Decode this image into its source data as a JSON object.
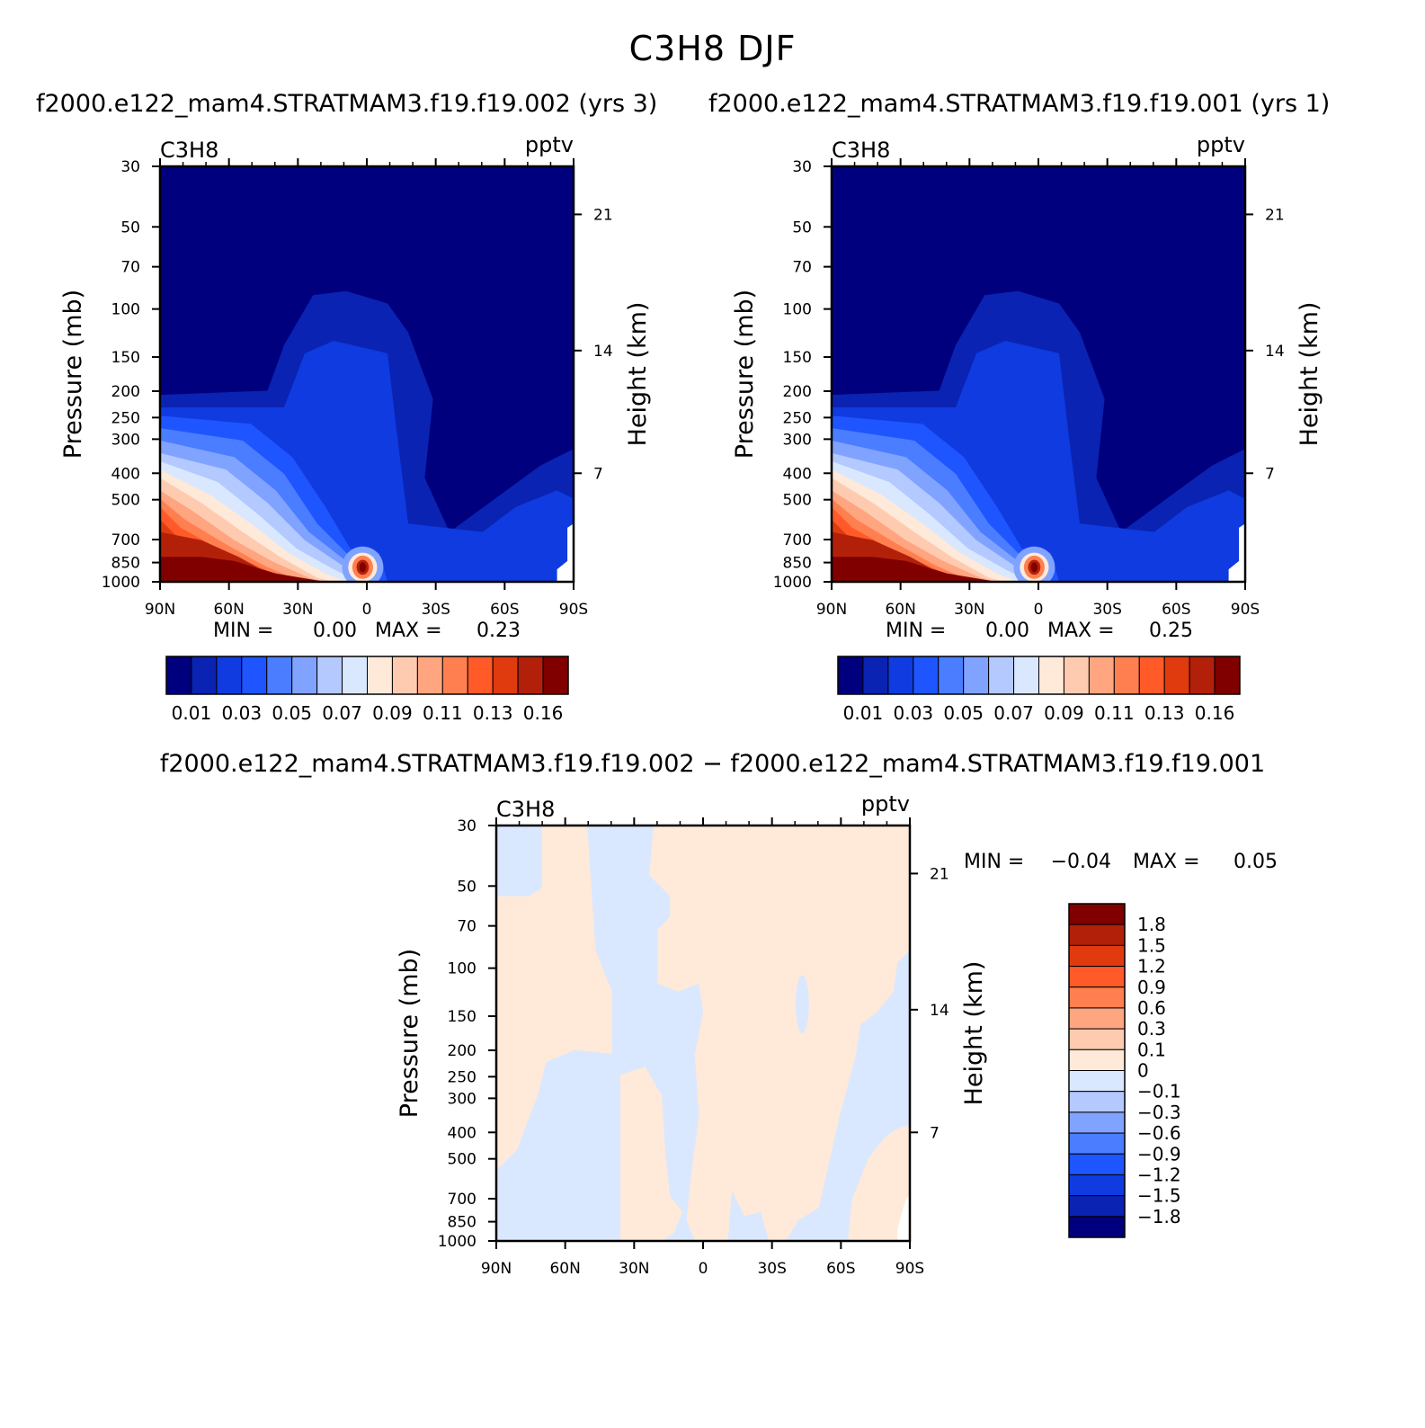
{
  "title": "C3H8 DJF",
  "colors": {
    "seq": [
      "#00007f",
      "#0a23b3",
      "#0f3be0",
      "#1e55ff",
      "#4a7dff",
      "#80a3ff",
      "#b3c9ff",
      "#d9e8ff",
      "#ffe9d9",
      "#ffcbb0",
      "#ffa680",
      "#ff7f50",
      "#ff5a28",
      "#e03a0f",
      "#b3200a",
      "#800000"
    ],
    "diff": [
      "#00007f",
      "#0a23b3",
      "#0f3be0",
      "#1e55ff",
      "#4a7dff",
      "#80a3ff",
      "#b3c9ff",
      "#d9e8ff",
      "#ffe9d9",
      "#ffcbb0",
      "#ffa680",
      "#ff7f50",
      "#ff5a28",
      "#e03a0f",
      "#b3200a",
      "#800000"
    ]
  },
  "chart_data": [
    {
      "type": "heatmap",
      "title": "f2000.e122_mam4.STRATMAM3.f19.f19.002 (yrs 3)",
      "left_label": "C3H8",
      "right_label": "pptv",
      "xlabel": "",
      "ylabel": "Pressure (mb)",
      "ylabel_right": "Height (km)",
      "x_ticks": [
        "90N",
        "60N",
        "30N",
        "0",
        "30S",
        "60S",
        "90S"
      ],
      "y_ticks": [
        "30",
        "50",
        "70",
        "100",
        "150",
        "200",
        "250",
        "300",
        "400",
        "500",
        "700",
        "850",
        "1000"
      ],
      "y_right_ticks": [
        "21",
        "14",
        "7"
      ],
      "min_label": "MIN =",
      "min_value": "0.00",
      "max_label": "MAX =",
      "max_value": "0.23",
      "colorbar_labels": [
        "0.01",
        "0.03",
        "0.05",
        "0.07",
        "0.09",
        "0.11",
        "0.13",
        "0.16"
      ],
      "contour_levels": [
        0.01,
        0.02,
        0.03,
        0.04,
        0.05,
        0.06,
        0.07,
        0.08,
        0.09,
        0.1,
        0.11,
        0.12,
        0.13,
        0.14,
        0.16
      ],
      "peak_value": 0.23
    },
    {
      "type": "heatmap",
      "title": "f2000.e122_mam4.STRATMAM3.f19.f19.001 (yrs 1)",
      "left_label": "C3H8",
      "right_label": "pptv",
      "xlabel": "",
      "ylabel": "Pressure (mb)",
      "ylabel_right": "Height (km)",
      "x_ticks": [
        "90N",
        "60N",
        "30N",
        "0",
        "30S",
        "60S",
        "90S"
      ],
      "y_ticks": [
        "30",
        "50",
        "70",
        "100",
        "150",
        "200",
        "250",
        "300",
        "400",
        "500",
        "700",
        "850",
        "1000"
      ],
      "y_right_ticks": [
        "21",
        "14",
        "7"
      ],
      "min_label": "MIN =",
      "min_value": "0.00",
      "max_label": "MAX =",
      "max_value": "0.25",
      "colorbar_labels": [
        "0.01",
        "0.03",
        "0.05",
        "0.07",
        "0.09",
        "0.11",
        "0.13",
        "0.16"
      ],
      "contour_levels": [
        0.01,
        0.02,
        0.03,
        0.04,
        0.05,
        0.06,
        0.07,
        0.08,
        0.09,
        0.1,
        0.11,
        0.12,
        0.13,
        0.14,
        0.16
      ],
      "peak_value": 0.25
    },
    {
      "type": "heatmap",
      "title": "f2000.e122_mam4.STRATMAM3.f19.f19.002 − f2000.e122_mam4.STRATMAM3.f19.f19.001",
      "left_label": "C3H8",
      "right_label": "pptv",
      "ylabel": "Pressure (mb)",
      "ylabel_right": "Height (km)",
      "x_ticks": [
        "90N",
        "60N",
        "30N",
        "0",
        "30S",
        "60S",
        "90S"
      ],
      "y_ticks": [
        "30",
        "50",
        "70",
        "100",
        "150",
        "200",
        "250",
        "300",
        "400",
        "500",
        "700",
        "850",
        "1000"
      ],
      "y_right_ticks": [
        "21",
        "14",
        "7"
      ],
      "min_label": "MIN =",
      "min_value": "−0.04",
      "max_label": "MAX =",
      "max_value": "0.05",
      "colorbar_labels": [
        "1.8",
        "1.5",
        "1.2",
        "0.9",
        "0.6",
        "0.3",
        "0.1",
        "0",
        "−0.1",
        "−0.3",
        "−0.6",
        "−0.9",
        "−1.2",
        "−1.5",
        "−1.8"
      ],
      "contour_levels": [
        -1.8,
        -1.5,
        -1.2,
        -0.9,
        -0.6,
        -0.3,
        -0.1,
        0,
        0.1,
        0.3,
        0.6,
        0.9,
        1.2,
        1.5,
        1.8
      ]
    }
  ]
}
